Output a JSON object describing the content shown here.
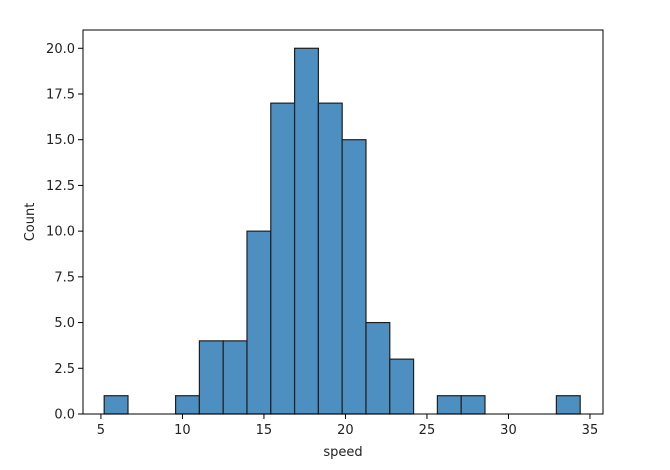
{
  "chart_data": {
    "type": "bar",
    "subtype": "histogram",
    "title": "",
    "xlabel": "speed",
    "ylabel": "Count",
    "xlim": [
      3.9,
      35.8
    ],
    "ylim": [
      0,
      21
    ],
    "xticks": [
      5,
      10,
      15,
      20,
      25,
      30,
      35
    ],
    "yticks": [
      0.0,
      2.5,
      5.0,
      7.5,
      10.0,
      12.5,
      15.0,
      17.5,
      20.0
    ],
    "ytick_labels": [
      "0.0",
      "2.5",
      "5.0",
      "7.5",
      "10.0",
      "12.5",
      "15.0",
      "17.5",
      "20.0"
    ],
    "bin_width": 1.46,
    "bins_start": [
      5.2,
      6.66,
      8.12,
      9.58,
      11.04,
      12.5,
      13.96,
      15.42,
      16.88,
      18.34,
      19.8,
      21.26,
      22.72,
      24.18,
      25.64,
      27.1,
      28.56,
      30.02,
      31.48,
      32.94
    ],
    "values": [
      1,
      0,
      0,
      1,
      4,
      4,
      10,
      17,
      20,
      17,
      15,
      5,
      3,
      0,
      1,
      1,
      0,
      0,
      0,
      1
    ],
    "bar_color": "#4c8fc0",
    "edge_color": "#1f1f1f",
    "grid": false,
    "legend": "none"
  }
}
